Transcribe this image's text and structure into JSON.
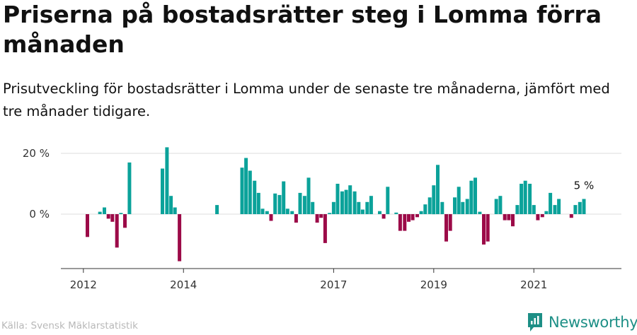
{
  "title": "Priserna på bostadsrätter steg i Lomma förra månaden",
  "subtitle": "Prisutveckling för bostadsrätter i Lomma under de senaste tre månaderna, jämfört med tre månader tidigare.",
  "source": "Källa: Svensk Mäklarstatistik",
  "brand": {
    "name": "Newsworthy",
    "icon": "newsworthy-logo-icon",
    "color": "#1d8f86"
  },
  "colors": {
    "positive": "#0ba29a",
    "negative": "#9c0a48",
    "axis": "#333333",
    "grid": "#dddddd"
  },
  "chart_data": {
    "type": "bar",
    "unit": "%",
    "ylim": [
      -18,
      22
    ],
    "y_ticks": [
      {
        "value": 0,
        "label": "0 %"
      },
      {
        "value": 20,
        "label": "20 %"
      }
    ],
    "x_ticks": [
      {
        "x": 2012.0,
        "label": "2012"
      },
      {
        "x": 2014.0,
        "label": "2014"
      },
      {
        "x": 2017.0,
        "label": "2017"
      },
      {
        "x": 2019.0,
        "label": "2019"
      },
      {
        "x": 2021.0,
        "label": "2021"
      }
    ],
    "xlim": [
      2011.55,
      2022.75
    ],
    "annotation": {
      "label": "5 %",
      "x": 2022.0,
      "value": 5
    },
    "series": [
      {
        "name": "Prisutveckling",
        "points": [
          {
            "x": 2012.08,
            "v": -7.5
          },
          {
            "x": 2012.33,
            "v": 0.8
          },
          {
            "x": 2012.42,
            "v": 2.2
          },
          {
            "x": 2012.5,
            "v": -1.5
          },
          {
            "x": 2012.58,
            "v": -2.5
          },
          {
            "x": 2012.67,
            "v": -11
          },
          {
            "x": 2012.75,
            "v": 0.4
          },
          {
            "x": 2012.83,
            "v": -4.5
          },
          {
            "x": 2012.92,
            "v": 17
          },
          {
            "x": 2013.58,
            "v": 15
          },
          {
            "x": 2013.67,
            "v": 22
          },
          {
            "x": 2013.75,
            "v": 6
          },
          {
            "x": 2013.83,
            "v": 2.2
          },
          {
            "x": 2013.92,
            "v": -15.5
          },
          {
            "x": 2014.67,
            "v": 3
          },
          {
            "x": 2015.17,
            "v": 15.3
          },
          {
            "x": 2015.25,
            "v": 18.5
          },
          {
            "x": 2015.33,
            "v": 14.3
          },
          {
            "x": 2015.42,
            "v": 11
          },
          {
            "x": 2015.5,
            "v": 7
          },
          {
            "x": 2015.58,
            "v": 1.8
          },
          {
            "x": 2015.67,
            "v": 1
          },
          {
            "x": 2015.75,
            "v": -2.2
          },
          {
            "x": 2015.83,
            "v": 6.8
          },
          {
            "x": 2015.92,
            "v": 6.3
          },
          {
            "x": 2016.0,
            "v": 10.8
          },
          {
            "x": 2016.08,
            "v": 1.8
          },
          {
            "x": 2016.17,
            "v": 1
          },
          {
            "x": 2016.25,
            "v": -2.8
          },
          {
            "x": 2016.33,
            "v": 7
          },
          {
            "x": 2016.42,
            "v": 6
          },
          {
            "x": 2016.5,
            "v": 12
          },
          {
            "x": 2016.58,
            "v": 4
          },
          {
            "x": 2016.67,
            "v": -2.8
          },
          {
            "x": 2016.75,
            "v": -1.2
          },
          {
            "x": 2016.83,
            "v": -9.5
          },
          {
            "x": 2016.92,
            "v": 0.4
          },
          {
            "x": 2017.0,
            "v": 4
          },
          {
            "x": 2017.08,
            "v": 10
          },
          {
            "x": 2017.17,
            "v": 7.5
          },
          {
            "x": 2017.25,
            "v": 8
          },
          {
            "x": 2017.33,
            "v": 9.5
          },
          {
            "x": 2017.42,
            "v": 7.5
          },
          {
            "x": 2017.5,
            "v": 4
          },
          {
            "x": 2017.58,
            "v": 1.5
          },
          {
            "x": 2017.67,
            "v": 4
          },
          {
            "x": 2017.75,
            "v": 6
          },
          {
            "x": 2017.92,
            "v": 1
          },
          {
            "x": 2018.0,
            "v": -1.5
          },
          {
            "x": 2018.08,
            "v": 9
          },
          {
            "x": 2018.25,
            "v": 0.5
          },
          {
            "x": 2018.33,
            "v": -5.5
          },
          {
            "x": 2018.42,
            "v": -5.5
          },
          {
            "x": 2018.5,
            "v": -2.5
          },
          {
            "x": 2018.58,
            "v": -2
          },
          {
            "x": 2018.67,
            "v": -1
          },
          {
            "x": 2018.75,
            "v": 1
          },
          {
            "x": 2018.83,
            "v": 3.2
          },
          {
            "x": 2018.92,
            "v": 5.5
          },
          {
            "x": 2019.0,
            "v": 9.5
          },
          {
            "x": 2019.08,
            "v": 16.2
          },
          {
            "x": 2019.17,
            "v": 4
          },
          {
            "x": 2019.25,
            "v": -9
          },
          {
            "x": 2019.33,
            "v": -5.5
          },
          {
            "x": 2019.42,
            "v": 5.5
          },
          {
            "x": 2019.5,
            "v": 9
          },
          {
            "x": 2019.58,
            "v": 4
          },
          {
            "x": 2019.67,
            "v": 5
          },
          {
            "x": 2019.75,
            "v": 11
          },
          {
            "x": 2019.83,
            "v": 12
          },
          {
            "x": 2019.92,
            "v": 0.8
          },
          {
            "x": 2020.0,
            "v": -10
          },
          {
            "x": 2020.08,
            "v": -9
          },
          {
            "x": 2020.25,
            "v": 5
          },
          {
            "x": 2020.33,
            "v": 6
          },
          {
            "x": 2020.42,
            "v": -2
          },
          {
            "x": 2020.5,
            "v": -2
          },
          {
            "x": 2020.58,
            "v": -4
          },
          {
            "x": 2020.67,
            "v": 3
          },
          {
            "x": 2020.75,
            "v": 10
          },
          {
            "x": 2020.83,
            "v": 11
          },
          {
            "x": 2020.92,
            "v": 10
          },
          {
            "x": 2021.0,
            "v": 3
          },
          {
            "x": 2021.08,
            "v": -2
          },
          {
            "x": 2021.17,
            "v": -1
          },
          {
            "x": 2021.25,
            "v": 1
          },
          {
            "x": 2021.33,
            "v": 7
          },
          {
            "x": 2021.42,
            "v": 3
          },
          {
            "x": 2021.5,
            "v": 5
          },
          {
            "x": 2021.75,
            "v": -1.2
          },
          {
            "x": 2021.83,
            "v": 3
          },
          {
            "x": 2021.92,
            "v": 4
          },
          {
            "x": 2022.0,
            "v": 5
          }
        ]
      }
    ]
  }
}
